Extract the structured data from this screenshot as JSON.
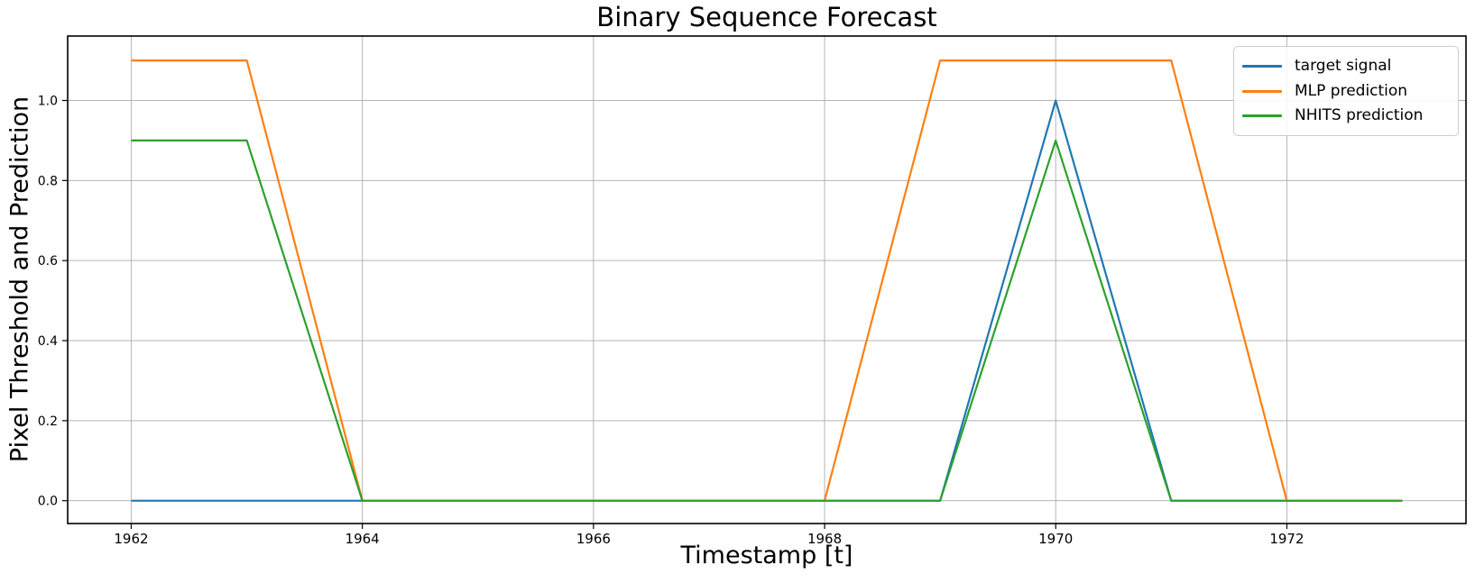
{
  "chart_data": {
    "type": "line",
    "title": "Binary Sequence Forecast",
    "xlabel": "Timestamp [t]",
    "ylabel": "Pixel Threshold and Prediction",
    "x": [
      1962,
      1963,
      1964,
      1965,
      1966,
      1967,
      1968,
      1969,
      1970,
      1971,
      1972,
      1973
    ],
    "series": [
      {
        "name": "target signal",
        "color": "#1f77b4",
        "values": [
          0,
          0,
          0,
          0,
          0,
          0,
          0,
          0,
          1.0,
          0,
          0,
          0
        ]
      },
      {
        "name": "MLP prediction",
        "color": "#ff7f0e",
        "values": [
          1.1,
          1.1,
          0,
          0,
          0,
          0,
          0,
          1.1,
          1.1,
          1.1,
          0,
          0
        ]
      },
      {
        "name": "NHITS prediction",
        "color": "#2ca02c",
        "values": [
          0.9,
          0.9,
          0,
          0,
          0,
          0,
          0,
          0,
          0.9,
          0,
          0,
          0
        ]
      }
    ],
    "xticks": [
      1962,
      1964,
      1966,
      1968,
      1970,
      1972
    ],
    "xtick_labels": [
      "1962",
      "1964",
      "1966",
      "1968",
      "1970",
      "1972"
    ],
    "yticks": [
      0.0,
      0.2,
      0.4,
      0.6,
      0.8,
      1.0
    ],
    "ytick_labels": [
      "0.0",
      "0.2",
      "0.4",
      "0.6",
      "0.8",
      "1.0"
    ],
    "xlim": [
      1961.45,
      1973.55
    ],
    "ylim": [
      -0.057,
      1.161
    ],
    "grid": true,
    "legend_position": "upper right",
    "grid_color": "#b4b4b4",
    "axes_color": "#000000",
    "tick_label_color": "#000000"
  }
}
